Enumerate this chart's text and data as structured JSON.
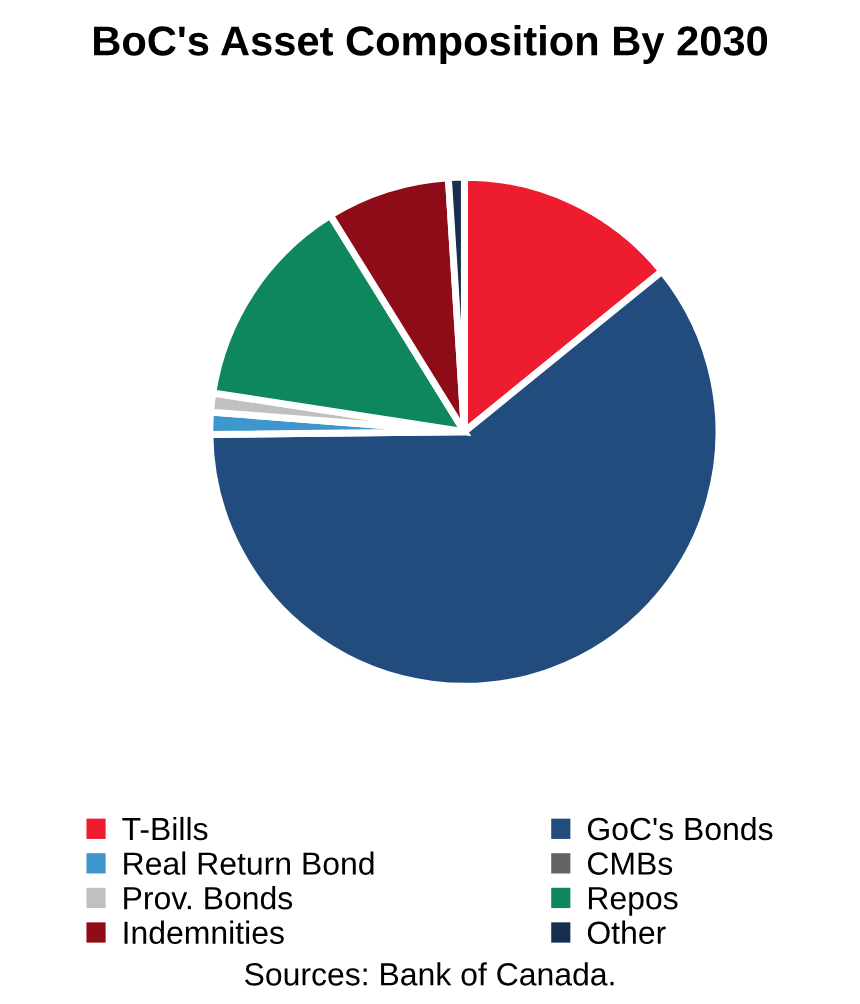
{
  "chart_data": {
    "type": "pie",
    "title": "BoC's Asset Composition By 2030",
    "categories": [
      "T-Bills",
      "GoC's Bonds",
      "Real Return Bond",
      "CMBs",
      "Prov. Bonds",
      "Repos",
      "Indemnities",
      "Other"
    ],
    "values": [
      14.1,
      60.5,
      1.4,
      null,
      1.2,
      13.7,
      7.8,
      1.0
    ],
    "colors": [
      "#ed1c2e",
      "#224b7e",
      "#3e97cc",
      "#636363",
      "#c0c0c0",
      "#0f875c",
      "#8e0c17",
      "#162e50"
    ],
    "legend": "bottom",
    "annotations": [
      "Sources: Bank of Canada."
    ]
  }
}
